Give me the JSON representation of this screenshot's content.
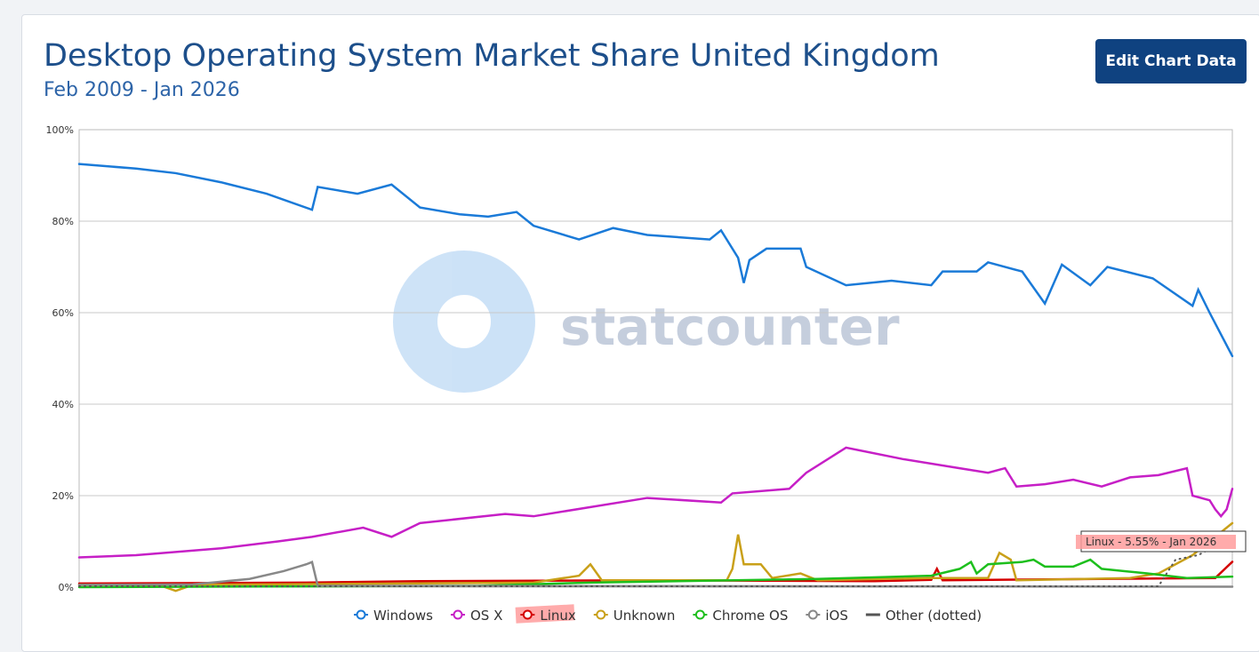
{
  "header": {
    "title": "Desktop Operating System Market Share United Kingdom",
    "subtitle": "Feb 2009 - Jan 2026",
    "edit_button": "Edit Chart Data"
  },
  "watermark": "statcounter",
  "tooltip": "Linux - 5.55% - Jan 2026",
  "chart_data": {
    "type": "line",
    "title": "Desktop Operating System Market Share United Kingdom",
    "subtitle": "Feb 2009 - Jan 2026",
    "x_note": "month index 0 = Feb 2009, 203 = Jan 2026",
    "ylim": [
      0,
      100
    ],
    "yticks": [
      "0%",
      "20%",
      "40%",
      "60%",
      "80%",
      "100%"
    ],
    "grid": true,
    "legend": "bottom",
    "series": [
      {
        "name": "Windows",
        "color": "#1a7ad8",
        "dotted": false,
        "points": [
          [
            0,
            92.5
          ],
          [
            10,
            91.5
          ],
          [
            17,
            90.5
          ],
          [
            25,
            88.5
          ],
          [
            33,
            86
          ],
          [
            41,
            82.5
          ],
          [
            42,
            87.5
          ],
          [
            49,
            86
          ],
          [
            55,
            88
          ],
          [
            60,
            83
          ],
          [
            67,
            81.5
          ],
          [
            72,
            81
          ],
          [
            77,
            82
          ],
          [
            80,
            79
          ],
          [
            88,
            76
          ],
          [
            94,
            78.5
          ],
          [
            100,
            77
          ],
          [
            111,
            76
          ],
          [
            113,
            78
          ],
          [
            116,
            72
          ],
          [
            117,
            66.5
          ],
          [
            118,
            71.5
          ],
          [
            121,
            74
          ],
          [
            127,
            74
          ],
          [
            128,
            70
          ],
          [
            135,
            66
          ],
          [
            143,
            67
          ],
          [
            150,
            66
          ],
          [
            152,
            69
          ],
          [
            158,
            69
          ],
          [
            160,
            71
          ],
          [
            166,
            69
          ],
          [
            170,
            62
          ],
          [
            173,
            70.5
          ],
          [
            178,
            66
          ],
          [
            181,
            70
          ],
          [
            189,
            67.5
          ],
          [
            196,
            61.5
          ],
          [
            197,
            65
          ],
          [
            199,
            60
          ],
          [
            203,
            50.5
          ]
        ]
      },
      {
        "name": "OS X",
        "color": "#c61fc6",
        "dotted": false,
        "points": [
          [
            0,
            6.5
          ],
          [
            10,
            7
          ],
          [
            25,
            8.5
          ],
          [
            35,
            10
          ],
          [
            41,
            11
          ],
          [
            50,
            13
          ],
          [
            55,
            11
          ],
          [
            60,
            14
          ],
          [
            75,
            16
          ],
          [
            80,
            15.5
          ],
          [
            90,
            17.5
          ],
          [
            100,
            19.5
          ],
          [
            113,
            18.5
          ],
          [
            115,
            20.5
          ],
          [
            125,
            21.5
          ],
          [
            128,
            25
          ],
          [
            135,
            30.5
          ],
          [
            145,
            28
          ],
          [
            155,
            26
          ],
          [
            160,
            25
          ],
          [
            163,
            26
          ],
          [
            165,
            22
          ],
          [
            170,
            22.5
          ],
          [
            175,
            23.5
          ],
          [
            180,
            22
          ],
          [
            185,
            24
          ],
          [
            190,
            24.5
          ],
          [
            195,
            26
          ],
          [
            196,
            20
          ],
          [
            199,
            19
          ],
          [
            200,
            17
          ],
          [
            201,
            15.5
          ],
          [
            202,
            17
          ],
          [
            203,
            21.5
          ]
        ]
      },
      {
        "name": "Linux",
        "color": "#d40000",
        "dotted": false,
        "points": [
          [
            0,
            0.8
          ],
          [
            40,
            1
          ],
          [
            60,
            1.3
          ],
          [
            100,
            1.5
          ],
          [
            140,
            1.3
          ],
          [
            150,
            1.6
          ],
          [
            151,
            4
          ],
          [
            152,
            1.5
          ],
          [
            180,
            1.8
          ],
          [
            200,
            2
          ],
          [
            203,
            5.55
          ]
        ]
      },
      {
        "name": "Unknown",
        "color": "#c9a019",
        "dotted": false,
        "points": [
          [
            0,
            0.5
          ],
          [
            14,
            0.5
          ],
          [
            17,
            -0.8
          ],
          [
            20,
            0.5
          ],
          [
            80,
            1
          ],
          [
            88,
            2.5
          ],
          [
            90,
            5
          ],
          [
            92,
            1.5
          ],
          [
            114,
            1.5
          ],
          [
            115,
            4
          ],
          [
            116,
            11.5
          ],
          [
            117,
            5
          ],
          [
            120,
            5
          ],
          [
            122,
            2
          ],
          [
            127,
            3
          ],
          [
            130,
            1.5
          ],
          [
            150,
            2
          ],
          [
            160,
            2
          ],
          [
            162,
            7.5
          ],
          [
            164,
            6
          ],
          [
            165,
            1.5
          ],
          [
            185,
            2
          ],
          [
            190,
            3
          ],
          [
            196,
            7
          ],
          [
            203,
            14
          ]
        ]
      },
      {
        "name": "Chrome OS",
        "color": "#1dbf1d",
        "dotted": false,
        "points": [
          [
            0,
            0
          ],
          [
            70,
            0.3
          ],
          [
            90,
            1
          ],
          [
            130,
            1.8
          ],
          [
            150,
            2.5
          ],
          [
            155,
            4
          ],
          [
            157,
            5.5
          ],
          [
            158,
            3
          ],
          [
            160,
            5
          ],
          [
            166,
            5.5
          ],
          [
            168,
            6
          ],
          [
            170,
            4.5
          ],
          [
            175,
            4.5
          ],
          [
            178,
            6
          ],
          [
            180,
            4
          ],
          [
            188,
            3
          ],
          [
            195,
            2
          ],
          [
            203,
            2.3
          ]
        ]
      },
      {
        "name": "iOS",
        "color": "#888888",
        "dotted": false,
        "points": [
          [
            0,
            0.5
          ],
          [
            20,
            0.6
          ],
          [
            30,
            1.8
          ],
          [
            36,
            3.5
          ],
          [
            40,
            5
          ],
          [
            41,
            5.5
          ],
          [
            42,
            0.3
          ],
          [
            203,
            0.1
          ]
        ]
      },
      {
        "name": "Other (dotted)",
        "color": "#555555",
        "dotted": true,
        "points": [
          [
            0,
            0.2
          ],
          [
            190,
            0.2
          ],
          [
            193,
            6
          ],
          [
            197,
            7
          ],
          [
            200,
            9
          ],
          [
            203,
            10.5
          ]
        ]
      }
    ]
  }
}
